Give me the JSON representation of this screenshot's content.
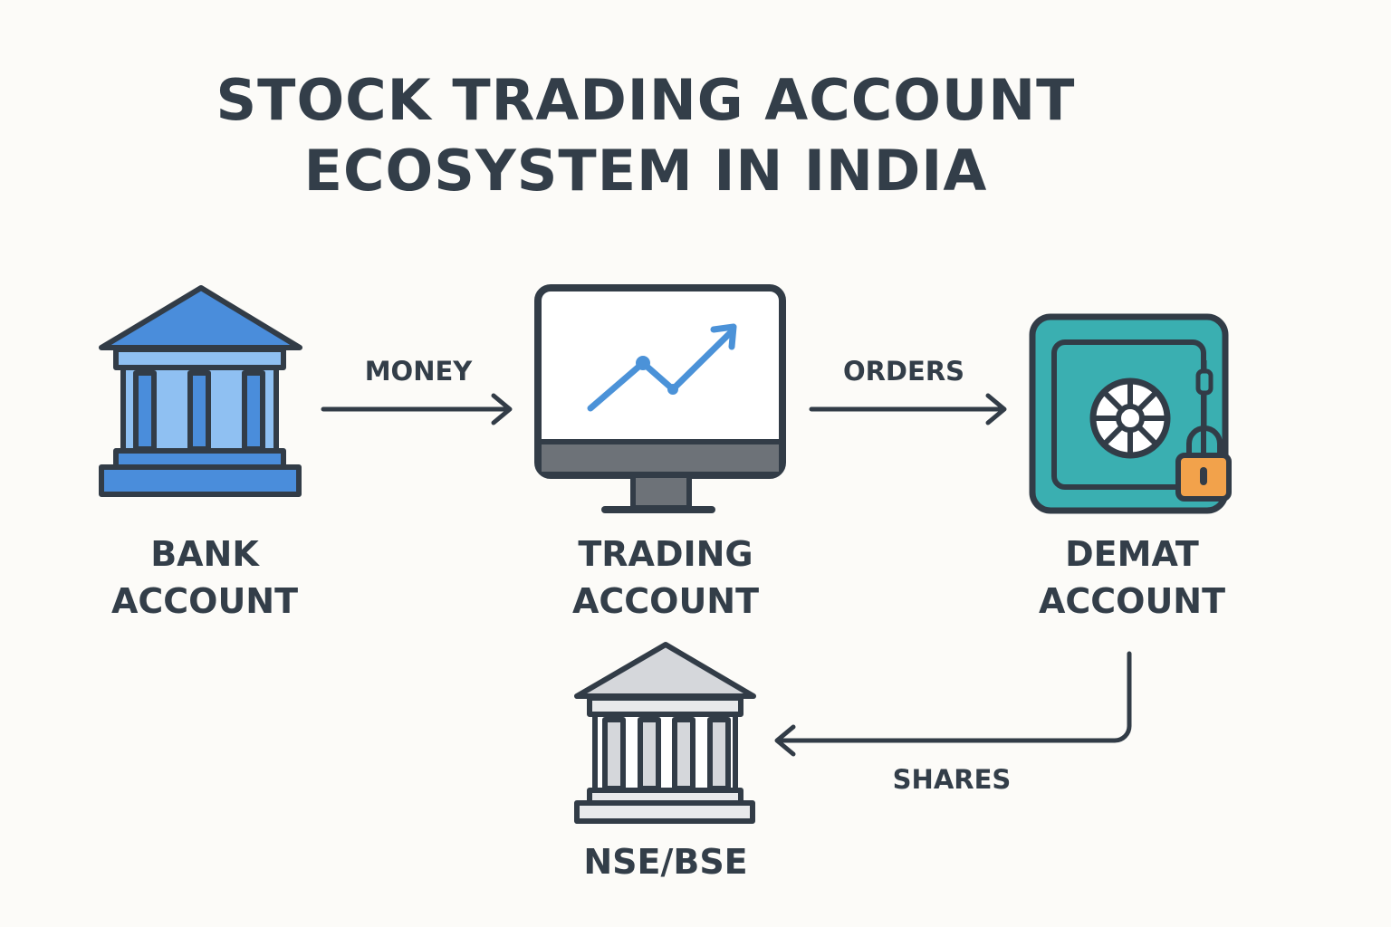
{
  "title": {
    "line1": "STOCK TRADING ACCOUNT",
    "line2": "ECOSYSTEM IN INDIA"
  },
  "nodes": {
    "bank": {
      "line1": "BANK",
      "line2": "ACCOUNT",
      "icon": "bank-building-icon"
    },
    "trading": {
      "line1": "TRADING",
      "line2": "ACCOUNT",
      "icon": "monitor-chart-icon"
    },
    "demat": {
      "line1": "DEMAT",
      "line2": "ACCOUNT",
      "icon": "safe-lock-icon"
    },
    "exchange": {
      "label": "NSE/BSE",
      "icon": "exchange-building-icon"
    }
  },
  "edges": {
    "money": {
      "label": "MONEY",
      "from": "bank",
      "to": "trading"
    },
    "orders": {
      "label": "ORDERS",
      "from": "trading",
      "to": "demat"
    },
    "shares": {
      "label": "SHARES",
      "from": "demat",
      "to": "exchange"
    }
  },
  "colors": {
    "outline": "#323c47",
    "bank_blue": "#4a8ddb",
    "bank_light": "#8fc0f2",
    "exchange_gray": "#d5d7db",
    "safe_teal": "#3aafb1",
    "lock_orange": "#f2a24b",
    "chart_line": "#4b92d8"
  }
}
